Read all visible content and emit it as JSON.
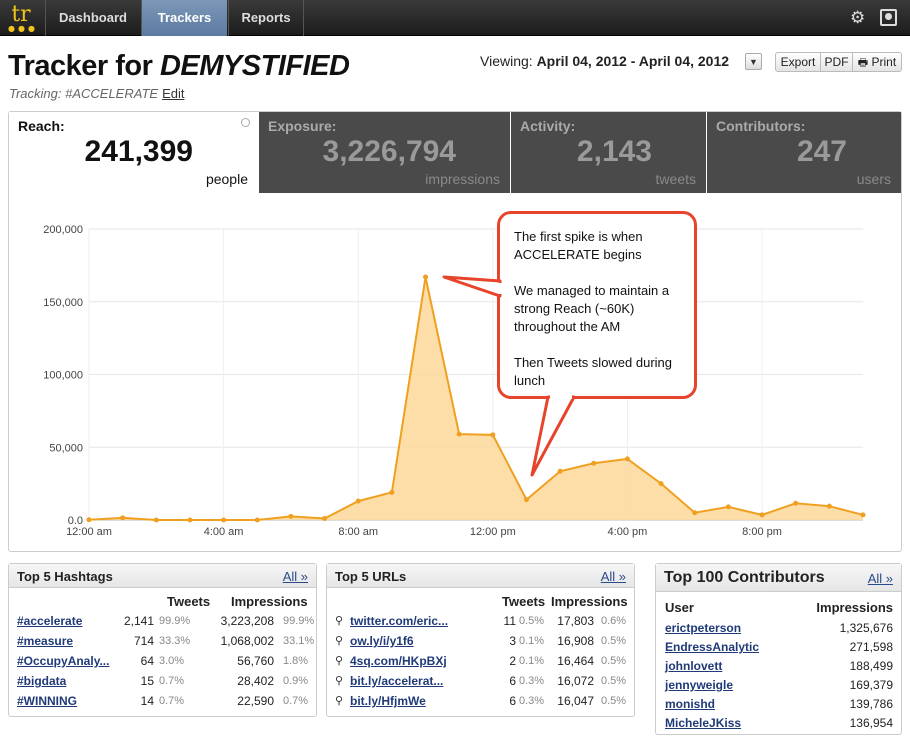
{
  "nav": {
    "logo": "tr",
    "logo_dots": "●●●",
    "items": [
      {
        "label": "Dashboard"
      },
      {
        "label": "Trackers"
      },
      {
        "label": "Reports"
      }
    ],
    "settings_glyph": "⚙"
  },
  "header": {
    "title_prefix": "Tracker for ",
    "title_name": "DEMYSTIFIED",
    "tracking_label": "Tracking: #ACCELERATE",
    "edit_label": "Edit",
    "viewing_label": "Viewing:",
    "date_range": "April 04, 2012 - April 04, 2012",
    "dropdown_glyph": "▼",
    "export_label": "Export",
    "pdf_label": "PDF",
    "print_label": "Print",
    "print_glyph": "🖶"
  },
  "stats": [
    {
      "label": "Reach:",
      "value": "241,399",
      "unit": "people"
    },
    {
      "label": "Exposure:",
      "value": "3,226,794",
      "unit": "impressions"
    },
    {
      "label": "Activity:",
      "value": "2,143",
      "unit": "tweets"
    },
    {
      "label": "Contributors:",
      "value": "247",
      "unit": "users"
    }
  ],
  "callout": {
    "line1": "The first spike is when ACCELERATE begins",
    "line2": "We managed to maintain a strong Reach (~60K) throughout the AM",
    "line3": "Then Tweets slowed during lunch"
  },
  "chart_data": {
    "type": "area",
    "series": [
      {
        "values": [
          200,
          1500,
          0,
          0,
          0,
          0,
          2500,
          1000,
          13000,
          19000,
          167000,
          59000,
          58500,
          14000,
          33500,
          39000,
          42000,
          25000,
          5000,
          9000,
          3500,
          11500,
          9500,
          3500
        ]
      }
    ],
    "x_tick_labels": [
      "12:00 am",
      "4:00 am",
      "8:00 am",
      "12:00 pm",
      "4:00 pm",
      "8:00 pm"
    ],
    "y_tick_labels": [
      "0.0",
      "50,000",
      "100,000",
      "150,000",
      "200,000"
    ],
    "ylim": [
      0,
      200000
    ],
    "grid": true,
    "fill_color": "#fdd89a",
    "line_color": "#f0a020"
  },
  "hashtags": {
    "title": "Top 5 Hashtags",
    "all_label": "All »",
    "col_tweets": "Tweets",
    "col_impressions": "Impressions",
    "rows": [
      {
        "name": "#accelerate",
        "tweets": "2,141",
        "tweets_pct": "99.9%",
        "impressions": "3,223,208",
        "impressions_pct": "99.9%"
      },
      {
        "name": "#measure",
        "tweets": "714",
        "tweets_pct": "33.3%",
        "impressions": "1,068,002",
        "impressions_pct": "33.1%"
      },
      {
        "name": "#OccupyAnaly...",
        "tweets": "64",
        "tweets_pct": "3.0%",
        "impressions": "56,760",
        "impressions_pct": "1.8%"
      },
      {
        "name": "#bigdata",
        "tweets": "15",
        "tweets_pct": "0.7%",
        "impressions": "28,402",
        "impressions_pct": "0.9%"
      },
      {
        "name": "#WINNING",
        "tweets": "14",
        "tweets_pct": "0.7%",
        "impressions": "22,590",
        "impressions_pct": "0.7%"
      }
    ]
  },
  "urls": {
    "title": "Top 5 URLs",
    "all_label": "All »",
    "col_tweets": "Tweets",
    "col_impressions": "Impressions",
    "rows": [
      {
        "name": "twitter.com/eric...",
        "tweets": "11",
        "tweets_pct": "0.5%",
        "impressions": "17,803",
        "impressions_pct": "0.6%"
      },
      {
        "name": "ow.ly/i/y1f6",
        "tweets": "3",
        "tweets_pct": "0.1%",
        "impressions": "16,908",
        "impressions_pct": "0.5%"
      },
      {
        "name": "4sq.com/HKpBXj",
        "tweets": "2",
        "tweets_pct": "0.1%",
        "impressions": "16,464",
        "impressions_pct": "0.5%"
      },
      {
        "name": "bit.ly/accelerat...",
        "tweets": "6",
        "tweets_pct": "0.3%",
        "impressions": "16,072",
        "impressions_pct": "0.5%"
      },
      {
        "name": "bit.ly/HfjmWe",
        "tweets": "6",
        "tweets_pct": "0.3%",
        "impressions": "16,047",
        "impressions_pct": "0.5%"
      }
    ]
  },
  "contributors": {
    "title": "Top 100 Contributors",
    "all_label": "All »",
    "col_user": "User",
    "col_impressions": "Impressions",
    "rows": [
      {
        "name": "erictpeterson",
        "impressions": "1,325,676"
      },
      {
        "name": "EndressAnalytic",
        "impressions": "271,598"
      },
      {
        "name": "johnlovett",
        "impressions": "188,499"
      },
      {
        "name": "jennyweigle",
        "impressions": "169,379"
      },
      {
        "name": "monishd",
        "impressions": "139,786"
      },
      {
        "name": "MicheleJKiss",
        "impressions": "136,954"
      }
    ]
  }
}
